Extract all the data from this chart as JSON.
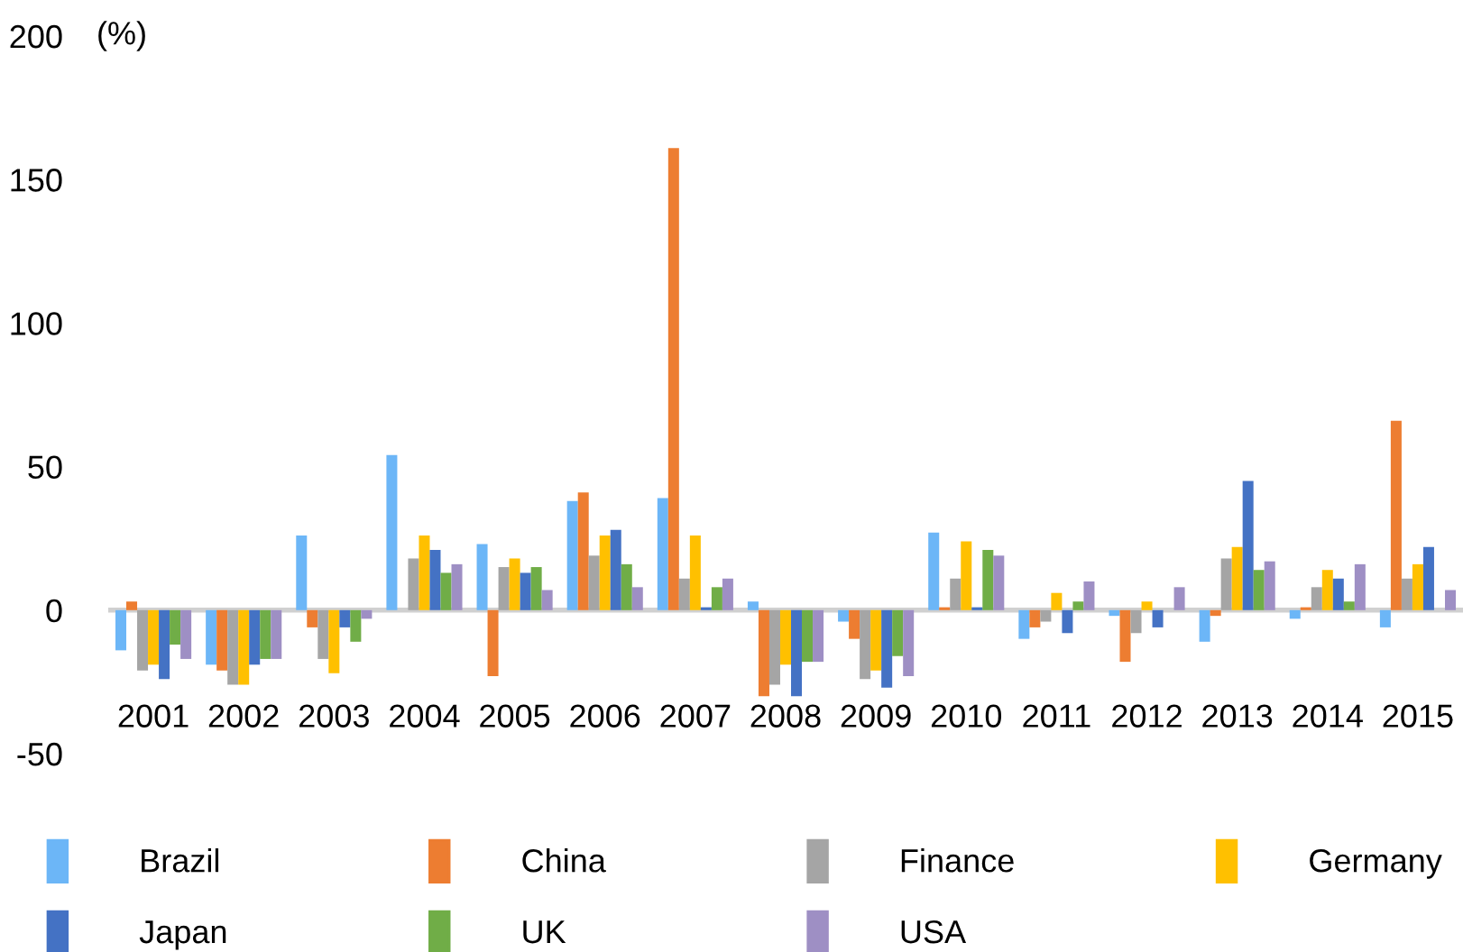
{
  "chart_data": {
    "type": "bar",
    "ylabel": "(%)",
    "categories": [
      "2001",
      "2002",
      "2003",
      "2004",
      "2005",
      "2006",
      "2007",
      "2008",
      "2009",
      "2010",
      "2011",
      "2012",
      "2013",
      "2014",
      "2015"
    ],
    "series": [
      {
        "name": "Brazil",
        "color": "#6cb6f7",
        "values": [
          -14,
          -19,
          26,
          54,
          23,
          38,
          39,
          3,
          -4,
          27,
          -10,
          -2,
          -11,
          -3,
          -6
        ]
      },
      {
        "name": "China",
        "color": "#ed7d31",
        "values": [
          3,
          -21,
          -6,
          0,
          -23,
          41,
          161,
          -30,
          -10,
          1,
          -6,
          -18,
          -2,
          1,
          66
        ]
      },
      {
        "name": "Finance",
        "color": "#a5a5a5",
        "values": [
          -21,
          -26,
          -17,
          18,
          15,
          19,
          11,
          -26,
          -24,
          11,
          -4,
          -8,
          18,
          8,
          11
        ]
      },
      {
        "name": "Germany",
        "color": "#ffc000",
        "values": [
          -19,
          -26,
          -22,
          26,
          18,
          26,
          26,
          -19,
          -21,
          24,
          6,
          3,
          22,
          14,
          16
        ]
      },
      {
        "name": "Japan",
        "color": "#4472c4",
        "values": [
          -24,
          -19,
          -6,
          21,
          13,
          28,
          1,
          -30,
          -27,
          1,
          -8,
          -6,
          45,
          11,
          22
        ]
      },
      {
        "name": "UK",
        "color": "#70ad47",
        "values": [
          -12,
          -17,
          -11,
          13,
          15,
          16,
          8,
          -18,
          -16,
          21,
          3,
          0,
          14,
          3,
          0
        ]
      },
      {
        "name": "USA",
        "color": "#9e8fc4",
        "values": [
          -17,
          -17,
          -3,
          16,
          7,
          8,
          11,
          -18,
          -23,
          19,
          10,
          8,
          17,
          16,
          7
        ]
      }
    ],
    "ylim": [
      -50,
      200
    ],
    "yticks": [
      -50,
      0,
      50,
      100,
      150,
      200
    ],
    "grid": false,
    "ref_lines": [
      {
        "axis": "y",
        "value": 0,
        "color": "#d0d0d0"
      }
    ],
    "legend": "bottom"
  }
}
